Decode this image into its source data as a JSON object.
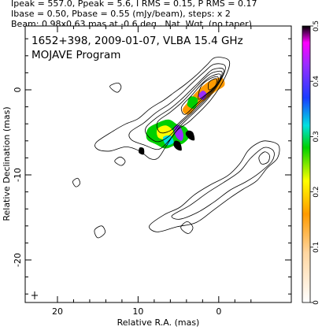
{
  "header": {
    "line1": "Ipeak = 557.0, Ppeak = 5.6, I RMS = 0.15, P RMS = 0.17",
    "line2": "Ibase = 0.50, Pbase = 0.55 (mJy/beam), steps: x 2",
    "line3": "Beam: 0.98x0.63 mas at -0.6 deg., Nat. Wgt. (no taper)"
  },
  "chart_data": {
    "type": "contour-map",
    "title": "1652+398, 2009-01-07, VLBA 15.4 GHz",
    "subtitle": "MOJAVE Program",
    "xlabel": "Relative R.A. (mas)",
    "ylabel": "Relative Declination (mas)",
    "xlim": [
      24,
      -9
    ],
    "ylim": [
      -25,
      7.5
    ],
    "x_ticks": [
      20,
      10,
      0
    ],
    "y_ticks": [
      0,
      -10,
      -20
    ],
    "x_tick_labels": [
      "20",
      "10",
      "0"
    ],
    "y_tick_labels": [
      "0",
      "-10",
      "-20"
    ],
    "colorbar": {
      "range": [
        0,
        0.5
      ],
      "ticks": [
        0,
        0.1,
        0.2,
        0.3,
        0.4,
        0.5
      ],
      "tick_labels": [
        "0",
        "0.1",
        "0.2",
        "0.3",
        "0.4",
        "0.5"
      ]
    },
    "image_stats": {
      "Ipeak": 557.0,
      "Ppeak": 5.6,
      "I_RMS": 0.15,
      "P_RMS": 0.17,
      "Ibase": 0.5,
      "Pbase": 0.55,
      "contour_step": 2,
      "units": "mJy/beam"
    },
    "beam": {
      "major_mas": 0.98,
      "minor_mas": 0.63,
      "pa_deg": -0.6
    },
    "core_ra_dec": [
      0,
      0
    ],
    "contours": [
      {
        "level": 1,
        "points": [
          [
            15.2,
            -6.2
          ],
          [
            13.0,
            -4.8
          ],
          [
            11.5,
            -4.0
          ],
          [
            10.0,
            -3.4
          ],
          [
            8.5,
            -2.2
          ],
          [
            6.8,
            -1.2
          ],
          [
            5.5,
            -0.3
          ],
          [
            4.2,
            0.6
          ],
          [
            2.8,
            1.7
          ],
          [
            1.5,
            2.9
          ],
          [
            0.4,
            3.8
          ],
          [
            -1.3,
            3.4
          ],
          [
            -0.8,
            1.5
          ],
          [
            1.0,
            -1.2
          ],
          [
            3.5,
            -3.6
          ],
          [
            5.2,
            -4.8
          ],
          [
            6.5,
            -6.6
          ],
          [
            7.5,
            -8.0
          ],
          [
            8.5,
            -8.1
          ],
          [
            9.8,
            -7.2
          ],
          [
            11.5,
            -6.7
          ],
          [
            13.5,
            -7.2
          ],
          [
            15.0,
            -7.0
          ]
        ]
      },
      {
        "level": 2,
        "points": [
          [
            11.0,
            -5.0
          ],
          [
            9.3,
            -3.9
          ],
          [
            7.8,
            -2.7
          ],
          [
            6.2,
            -1.7
          ],
          [
            4.8,
            -0.6
          ],
          [
            3.3,
            0.8
          ],
          [
            1.8,
            2.1
          ],
          [
            0.6,
            3.0
          ],
          [
            -0.8,
            2.8
          ],
          [
            -0.3,
            1.2
          ],
          [
            1.3,
            -1.0
          ],
          [
            3.4,
            -3.0
          ],
          [
            4.8,
            -4.3
          ],
          [
            6.2,
            -6.0
          ],
          [
            7.5,
            -7.0
          ],
          [
            9.2,
            -6.5
          ],
          [
            10.8,
            -5.9
          ]
        ]
      },
      {
        "level": 3,
        "points": [
          [
            9.0,
            -4.4
          ],
          [
            7.6,
            -3.2
          ],
          [
            6.0,
            -2.2
          ],
          [
            4.5,
            -1.0
          ],
          [
            3.0,
            0.4
          ],
          [
            1.7,
            1.6
          ],
          [
            0.7,
            2.4
          ],
          [
            -0.6,
            2.4
          ],
          [
            -0.1,
            1.0
          ],
          [
            1.4,
            -0.9
          ],
          [
            3.3,
            -2.7
          ],
          [
            4.8,
            -4.0
          ],
          [
            6.1,
            -5.4
          ],
          [
            7.6,
            -6.1
          ],
          [
            8.9,
            -5.3
          ]
        ]
      },
      {
        "level": 4,
        "points": [
          [
            7.6,
            -3.8
          ],
          [
            6.1,
            -2.7
          ],
          [
            4.6,
            -1.5
          ],
          [
            3.2,
            -0.1
          ],
          [
            1.9,
            1.2
          ],
          [
            0.8,
            2.0
          ],
          [
            -0.4,
            2.1
          ],
          [
            0.1,
            0.8
          ],
          [
            1.5,
            -0.8
          ],
          [
            3.2,
            -2.4
          ],
          [
            4.6,
            -3.6
          ],
          [
            6.0,
            -4.8
          ],
          [
            7.3,
            -5.0
          ]
        ]
      },
      {
        "level": 5,
        "points": [
          [
            4.6,
            -2.0
          ],
          [
            3.3,
            -0.6
          ],
          [
            2.0,
            0.8
          ],
          [
            0.9,
            1.6
          ],
          [
            -0.2,
            1.8
          ],
          [
            0.2,
            0.6
          ],
          [
            1.5,
            -0.6
          ],
          [
            3.0,
            -1.9
          ],
          [
            4.2,
            -2.9
          ]
        ]
      },
      {
        "level": 6,
        "points": [
          [
            2.2,
            0.4
          ],
          [
            1.1,
            1.3
          ],
          [
            0.1,
            1.5
          ],
          [
            0.3,
            0.5
          ],
          [
            1.4,
            -0.4
          ],
          [
            2.5,
            -1.1
          ]
        ]
      },
      {
        "level": 7,
        "points": [
          [
            1.2,
            0.9
          ],
          [
            0.3,
            1.3
          ],
          [
            0.4,
            0.5
          ],
          [
            1.2,
            0.0
          ]
        ]
      },
      {
        "level": 1,
        "points": [
          [
            -5.8,
            -6.0
          ],
          [
            -7.4,
            -6.5
          ],
          [
            -7.3,
            -8.0
          ],
          [
            -6.0,
            -9.2
          ],
          [
            -4.7,
            -10.7
          ],
          [
            -3.0,
            -11.7
          ],
          [
            -1.4,
            -12.7
          ],
          [
            0.6,
            -14.1
          ],
          [
            2.8,
            -15.6
          ],
          [
            5.2,
            -16.1
          ],
          [
            7.6,
            -16.7
          ],
          [
            8.6,
            -16.0
          ],
          [
            6.8,
            -14.7
          ],
          [
            4.8,
            -13.8
          ],
          [
            3.1,
            -12.4
          ],
          [
            1.1,
            -11.2
          ],
          [
            -1.1,
            -10.1
          ],
          [
            -2.6,
            -8.7
          ],
          [
            -3.6,
            -7.2
          ],
          [
            -4.6,
            -6.4
          ]
        ]
      },
      {
        "level": 2,
        "points": [
          [
            -5.6,
            -6.8
          ],
          [
            -6.8,
            -7.2
          ],
          [
            -6.6,
            -8.4
          ],
          [
            -5.0,
            -9.8
          ],
          [
            -3.4,
            -10.8
          ],
          [
            -1.4,
            -11.8
          ],
          [
            0.6,
            -13.2
          ],
          [
            2.6,
            -14.4
          ],
          [
            4.8,
            -15.2
          ],
          [
            5.8,
            -14.8
          ],
          [
            3.6,
            -13.6
          ],
          [
            1.4,
            -12.1
          ],
          [
            -0.6,
            -10.9
          ],
          [
            -2.6,
            -9.6
          ],
          [
            -4.0,
            -8.0
          ]
        ]
      },
      {
        "level": 3,
        "points": [
          [
            -5.7,
            -7.3
          ],
          [
            -6.3,
            -7.7
          ],
          [
            -6.1,
            -8.5
          ],
          [
            -5.3,
            -8.7
          ],
          [
            -5.0,
            -7.9
          ]
        ]
      },
      {
        "level": 1,
        "points": [
          [
            12.2,
            -7.9
          ],
          [
            12.9,
            -8.4
          ],
          [
            12.1,
            -8.9
          ],
          [
            11.6,
            -8.4
          ]
        ]
      },
      {
        "level": 1,
        "points": [
          [
            3.9,
            -15.5
          ],
          [
            4.7,
            -16.2
          ],
          [
            3.8,
            -16.9
          ],
          [
            3.2,
            -16.2
          ]
        ]
      },
      {
        "level": 1,
        "points": [
          [
            14.5,
            -16.0
          ],
          [
            15.4,
            -16.5
          ],
          [
            15.0,
            -17.4
          ],
          [
            14.1,
            -16.8
          ]
        ]
      },
      {
        "level": 1,
        "points": [
          [
            17.5,
            -10.4
          ],
          [
            18.1,
            -10.8
          ],
          [
            17.7,
            -11.4
          ],
          [
            17.2,
            -11.0
          ]
        ]
      },
      {
        "level": 1,
        "points": [
          [
            12.5,
            0.8
          ],
          [
            13.5,
            0.4
          ],
          [
            12.6,
            -0.3
          ],
          [
            12.1,
            0.3
          ]
        ]
      }
    ],
    "polarization_regions": [
      {
        "peak": 0.12,
        "points": [
          [
            0.4,
            -0.2
          ],
          [
            -0.7,
            0.5
          ],
          [
            -0.4,
            1.4
          ],
          [
            1.0,
            1.1
          ],
          [
            2.5,
            0.0
          ],
          [
            3.7,
            -1.3
          ],
          [
            4.5,
            -2.4
          ],
          [
            3.7,
            -2.9
          ],
          [
            2.4,
            -1.7
          ],
          [
            1.3,
            -0.9
          ]
        ]
      },
      {
        "peak": 0.28,
        "points": [
          [
            2.6,
            -1.1
          ],
          [
            3.5,
            -0.8
          ],
          [
            3.9,
            -1.8
          ],
          [
            3.0,
            -2.2
          ]
        ]
      },
      {
        "peak": 0.42,
        "points": [
          [
            1.5,
            -0.5
          ],
          [
            2.0,
            -0.1
          ],
          [
            2.5,
            -0.7
          ],
          [
            1.9,
            -1.2
          ]
        ]
      },
      {
        "peak": 0.25,
        "points": [
          [
            8.8,
            -4.6
          ],
          [
            7.6,
            -3.9
          ],
          [
            6.2,
            -3.5
          ],
          [
            5.1,
            -4.1
          ],
          [
            4.1,
            -4.4
          ],
          [
            3.6,
            -5.4
          ],
          [
            4.4,
            -6.3
          ],
          [
            5.4,
            -6.5
          ],
          [
            6.6,
            -6.9
          ],
          [
            7.8,
            -6.4
          ],
          [
            8.9,
            -5.8
          ]
        ]
      },
      {
        "peak": 0.22,
        "points": [
          [
            7.6,
            -4.6
          ],
          [
            6.5,
            -4.2
          ],
          [
            5.6,
            -5.0
          ],
          [
            6.4,
            -5.8
          ],
          [
            7.5,
            -5.6
          ]
        ]
      },
      {
        "peak": 0.3,
        "points": [
          [
            6.9,
            -5.6
          ],
          [
            6.0,
            -5.4
          ],
          [
            5.6,
            -6.2
          ],
          [
            6.5,
            -6.5
          ]
        ]
      },
      {
        "peak": 0.38,
        "points": [
          [
            5.5,
            -4.4
          ],
          [
            4.9,
            -4.2
          ],
          [
            4.4,
            -5.2
          ],
          [
            4.6,
            -6.0
          ],
          [
            5.3,
            -5.5
          ]
        ]
      },
      {
        "peak": 0.5,
        "points": [
          [
            5.4,
            -6.0
          ],
          [
            4.8,
            -6.2
          ],
          [
            4.6,
            -7.1
          ],
          [
            5.2,
            -7.0
          ],
          [
            5.6,
            -6.5
          ]
        ]
      },
      {
        "peak": 0.5,
        "points": [
          [
            3.8,
            -4.8
          ],
          [
            3.2,
            -5.0
          ],
          [
            3.0,
            -5.9
          ],
          [
            3.6,
            -5.8
          ],
          [
            4.1,
            -5.2
          ]
        ]
      },
      {
        "peak": 0.5,
        "points": [
          [
            9.8,
            -6.8
          ],
          [
            9.3,
            -6.9
          ],
          [
            9.3,
            -7.6
          ],
          [
            9.9,
            -7.4
          ]
        ]
      }
    ]
  }
}
